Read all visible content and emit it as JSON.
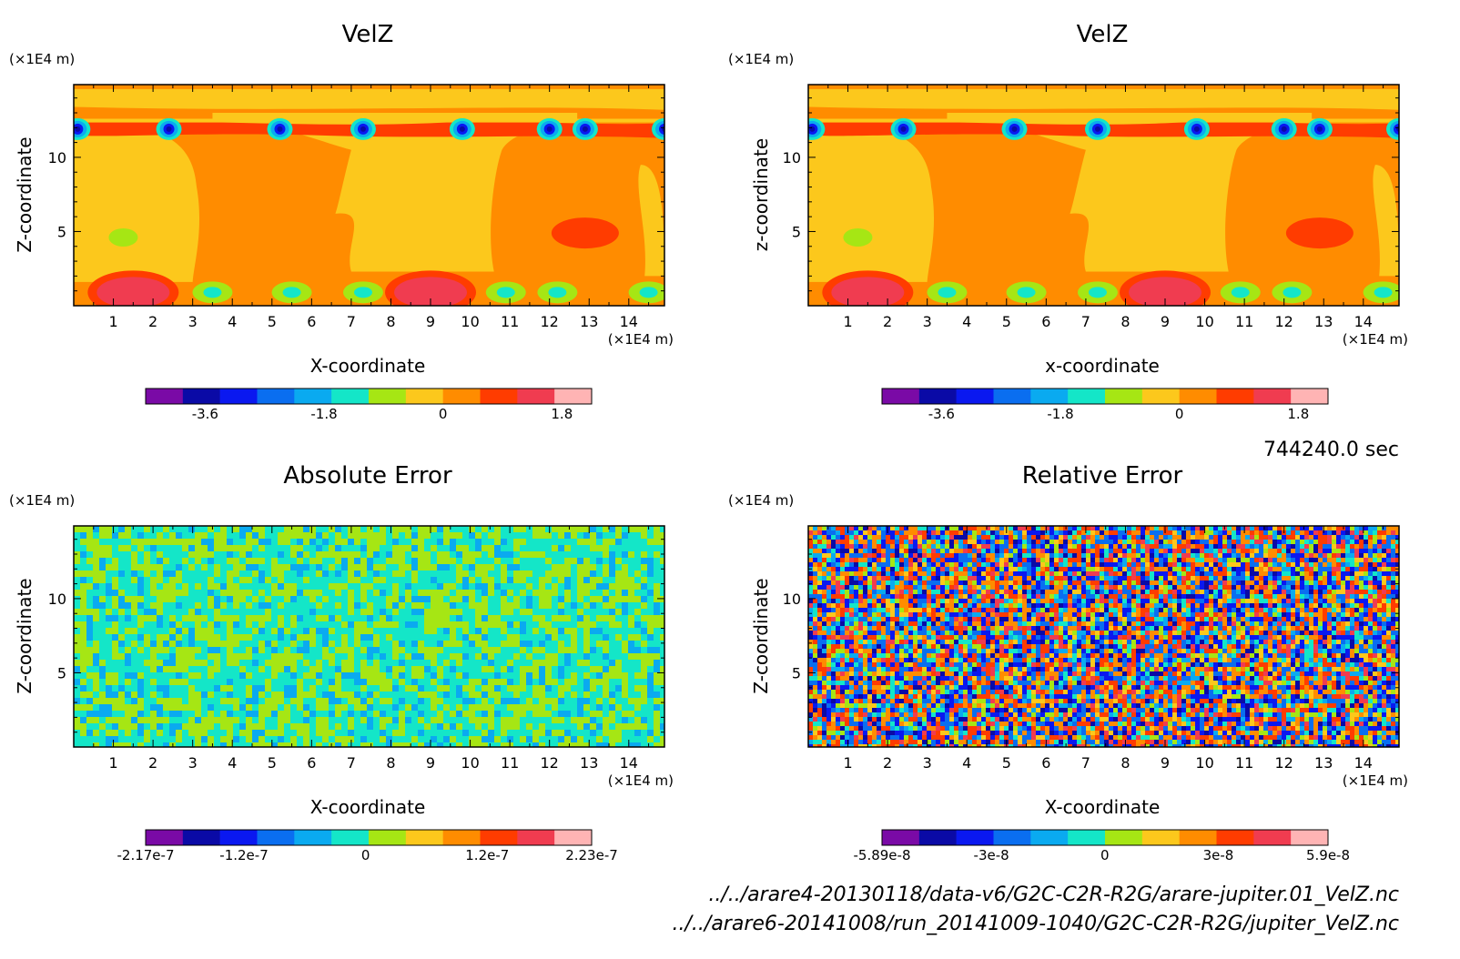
{
  "colors": {
    "velz_palette": [
      "#7a0aa6",
      "#0a0aa6",
      "#0a18f0",
      "#0a6ef0",
      "#0aaaf0",
      "#14e6c8",
      "#a6e614",
      "#fcc81c",
      "#ff8c00",
      "#ff3c00",
      "#f03c50",
      "#ffb4b4"
    ],
    "error_palette": [
      "#7a0aa6",
      "#0a0aa6",
      "#0a18f0",
      "#0a6ef0",
      "#0aaaf0",
      "#14e6c8",
      "#a6e614",
      "#fcc81c",
      "#ff8c00",
      "#ff3c00",
      "#f03c50",
      "#ffb4b4"
    ],
    "frame": "#000000"
  },
  "time_label": "744240.0 sec",
  "file_paths": [
    "../../arare4-20130118/data-v6/G2C-C2R-R2G/arare-jupiter.01_VelZ.nc",
    "../../arare6-20141008/run_20141009-1040/G2C-C2R-R2G/jupiter_VelZ.nc"
  ],
  "chart_data": [
    {
      "type": "heatmap",
      "title": "VelZ",
      "xlabel": "X-coordinate",
      "ylabel": "Z-coordinate",
      "x_unit": "(×1E4 m)",
      "y_unit": "(×1E4 m)",
      "xlim": [
        0,
        14.9
      ],
      "ylim": [
        0,
        14.9
      ],
      "x_ticks": [
        "1",
        "2",
        "3",
        "4",
        "5",
        "6",
        "7",
        "8",
        "9",
        "10",
        "11",
        "12",
        "13",
        "14"
      ],
      "y_ticks": [
        "5",
        "10"
      ],
      "colorbar_labels": [
        "-3.6",
        "-1.8",
        "0",
        "1.8"
      ],
      "colorbar_range": [
        -4.5,
        2.25
      ],
      "field": "velz"
    },
    {
      "type": "heatmap",
      "title": "VelZ",
      "xlabel": "x-coordinate",
      "ylabel": "z-coordinate",
      "x_unit": "(×1E4 m)",
      "y_unit": "(×1E4 m)",
      "xlim": [
        0,
        14.9
      ],
      "ylim": [
        0,
        14.9
      ],
      "x_ticks": [
        "1",
        "2",
        "3",
        "4",
        "5",
        "6",
        "7",
        "8",
        "9",
        "10",
        "11",
        "12",
        "13",
        "14"
      ],
      "y_ticks": [
        "5",
        "10"
      ],
      "colorbar_labels": [
        "-3.6",
        "-1.8",
        "0",
        "1.8"
      ],
      "colorbar_range": [
        -4.5,
        2.25
      ],
      "field": "velz"
    },
    {
      "type": "heatmap",
      "title": "Absolute Error",
      "xlabel": "X-coordinate",
      "ylabel": "Z-coordinate",
      "x_unit": "(×1E4 m)",
      "y_unit": "(×1E4 m)",
      "xlim": [
        0,
        14.9
      ],
      "ylim": [
        0,
        14.9
      ],
      "x_ticks": [
        "1",
        "2",
        "3",
        "4",
        "5",
        "6",
        "7",
        "8",
        "9",
        "10",
        "11",
        "12",
        "13",
        "14"
      ],
      "y_ticks": [
        "5",
        "10"
      ],
      "colorbar_labels": [
        "-2.17e-7",
        "-1.2e-7",
        "0",
        "1.2e-7",
        "2.23e-7"
      ],
      "colorbar_range": [
        -2.17e-07,
        2.23e-07
      ],
      "field": "abs_error"
    },
    {
      "type": "heatmap",
      "title": "Relative Error",
      "xlabel": "X-coordinate",
      "ylabel": "Z-coordinate",
      "x_unit": "(×1E4 m)",
      "y_unit": "(×1E4 m)",
      "xlim": [
        0,
        14.9
      ],
      "ylim": [
        0,
        14.9
      ],
      "x_ticks": [
        "1",
        "2",
        "3",
        "4",
        "5",
        "6",
        "7",
        "8",
        "9",
        "10",
        "11",
        "12",
        "13",
        "14"
      ],
      "y_ticks": [
        "5",
        "10"
      ],
      "colorbar_labels": [
        "-5.89e-8",
        "-3e-8",
        "0",
        "3e-8",
        "5.9e-8"
      ],
      "colorbar_range": [
        -5.89e-08,
        5.9e-08
      ],
      "field": "rel_error"
    }
  ]
}
